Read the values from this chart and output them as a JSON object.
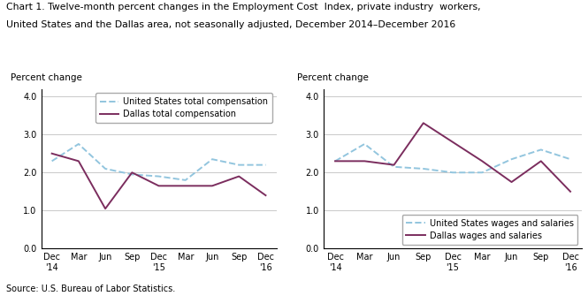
{
  "title_line1": "Chart 1. Twelve-month percent changes in the Employment Cost  Index, private industry  workers,",
  "title_line2": "United States and the Dallas area, not seasonally adjusted, December 2014–December 2016",
  "source": "Source: U.S. Bureau of Labor Statistics.",
  "x_labels": [
    "Dec\n'14",
    "Mar",
    "Jun",
    "Sep",
    "Dec\n'15",
    "Mar",
    "Jun",
    "Sep",
    "Dec\n'16"
  ],
  "ylabel": "Percent change",
  "ylim": [
    0.0,
    4.2
  ],
  "yticks": [
    0.0,
    1.0,
    2.0,
    3.0,
    4.0
  ],
  "chart1": {
    "us_total": [
      2.3,
      2.75,
      2.1,
      1.95,
      1.9,
      1.8,
      2.35,
      2.2,
      2.2
    ],
    "dallas_total": [
      2.5,
      2.3,
      1.05,
      2.0,
      1.65,
      1.65,
      1.65,
      1.9,
      1.4
    ],
    "legend1": "United States total compensation",
    "legend2": "Dallas total compensation"
  },
  "chart2": {
    "us_wages": [
      2.3,
      2.75,
      2.15,
      2.1,
      2.0,
      2.0,
      2.35,
      2.6,
      2.35
    ],
    "dallas_wages": [
      2.3,
      2.3,
      2.2,
      3.3,
      2.8,
      2.3,
      1.75,
      2.3,
      1.5
    ],
    "legend1": "United States wages and salaries",
    "legend2": "Dallas wages and salaries"
  },
  "us_color": "#92C5DE",
  "dallas_color": "#7B2D5E",
  "us_linestyle": "--",
  "dallas_linestyle": "-",
  "linewidth": 1.4,
  "title_fontsize": 7.8,
  "label_fontsize": 7.5,
  "tick_fontsize": 7,
  "legend_fontsize": 7,
  "source_fontsize": 7
}
